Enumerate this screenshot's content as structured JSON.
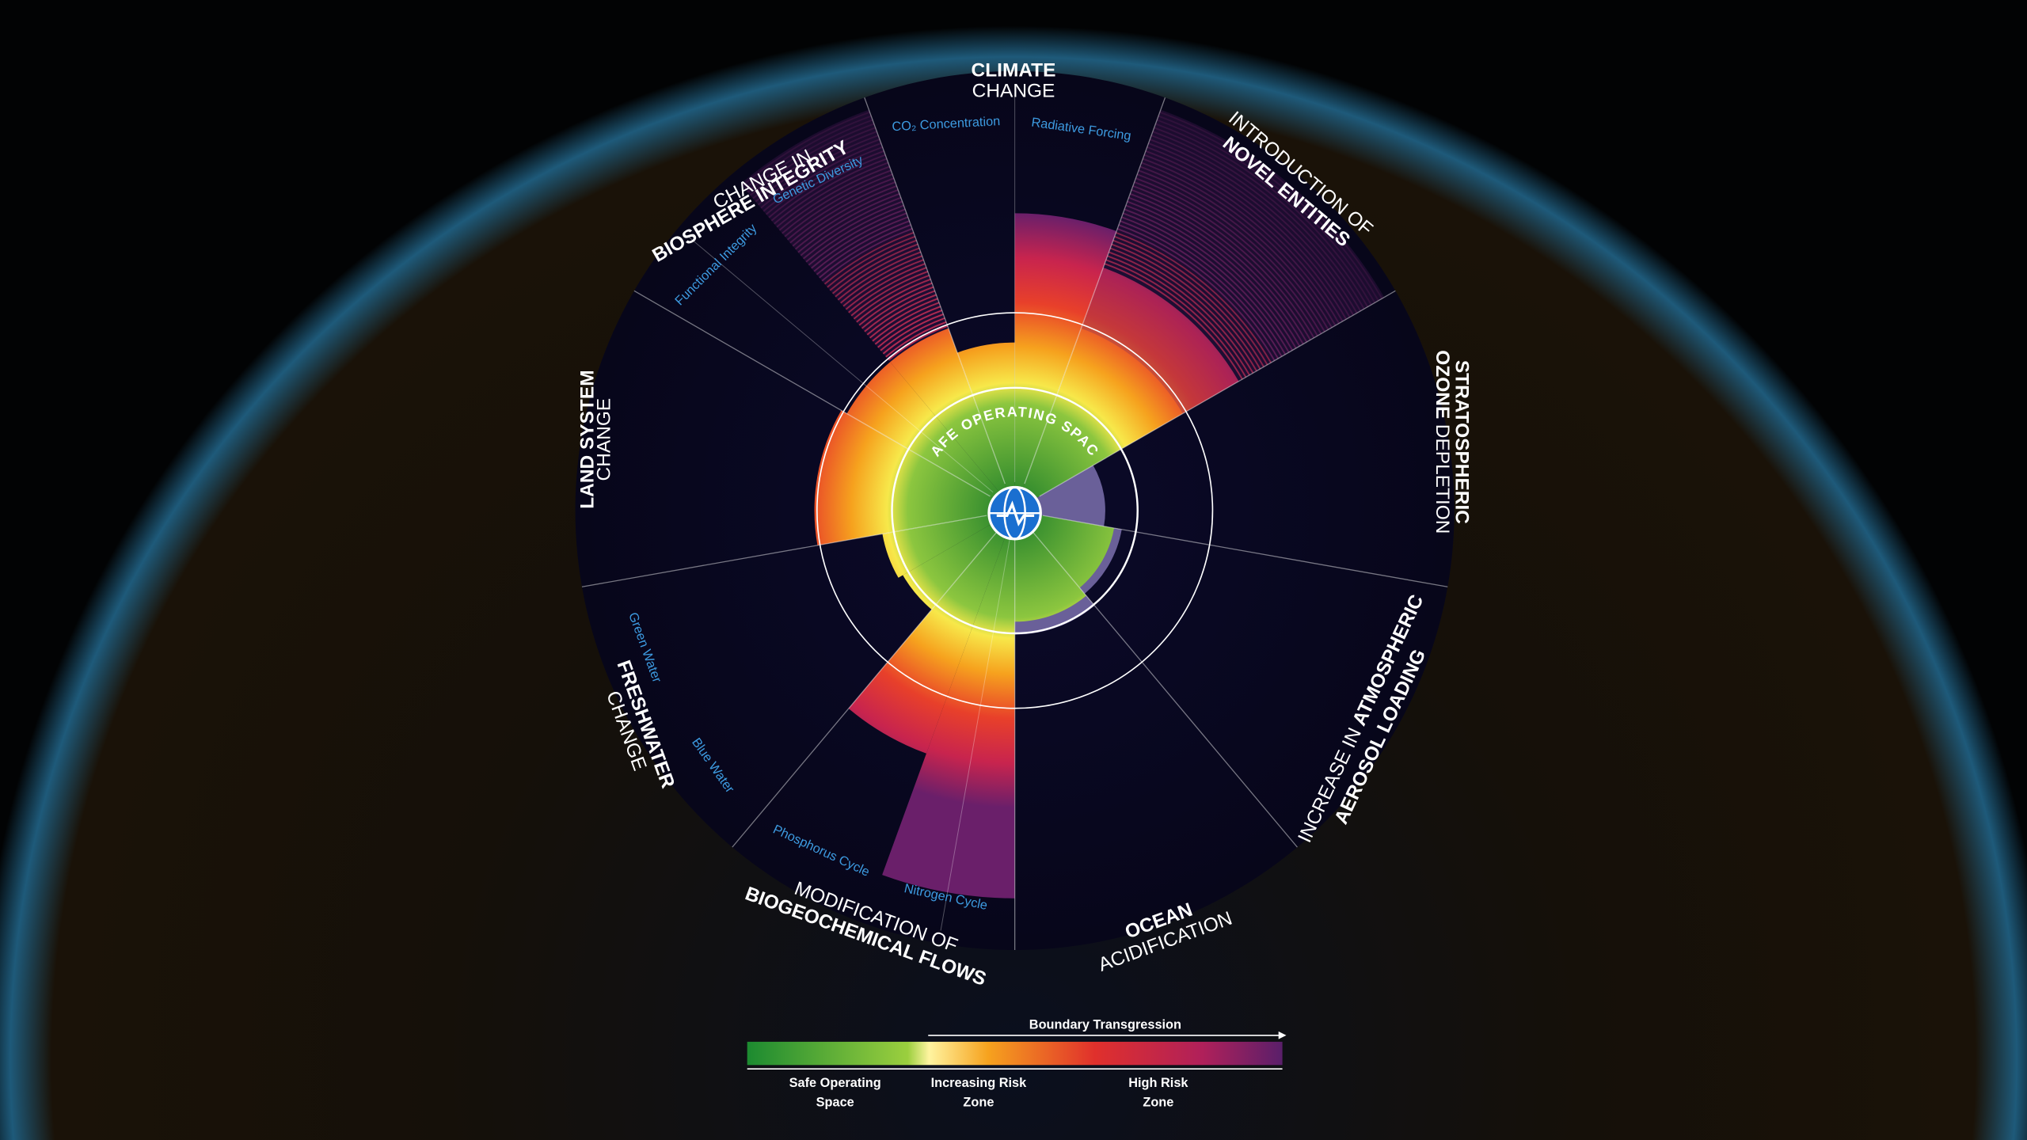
{
  "center_label": "SAFE OPERATING SPACE",
  "climate": {
    "line1": "CLIMATE",
    "line2": "CHANGE",
    "controls": [
      "CO₂ Concentration",
      "Radiative Forcing"
    ]
  },
  "novel_entities": {
    "line1": "INTRODUCTION OF",
    "line2": "NOVEL ENTITIES"
  },
  "ozone": {
    "line1": "STRATOSPHERIC",
    "line2_bold": "OZONE",
    "line2": "DEPLETION"
  },
  "aerosol": {
    "line1": "INCREASE IN",
    "line1_bold": "ATMOSPHERIC",
    "line2": "AEROSOL LOADING"
  },
  "ocean": {
    "line1": "OCEAN",
    "line2": "ACIDIFICATION"
  },
  "biogeochemical": {
    "line1": "MODIFICATION OF",
    "line2": "BIOGEOCHEMICAL FLOWS",
    "controls": [
      "Phosphorus Cycle",
      "Nitrogen Cycle"
    ]
  },
  "freshwater": {
    "line1": "FRESHWATER",
    "line2": "CHANGE",
    "controls": [
      "Green Water",
      "Blue Water"
    ]
  },
  "land": {
    "line1": "LAND SYSTEM",
    "line2": "CHANGE"
  },
  "biosphere": {
    "line1": "CHANGE IN",
    "line2": "BIOSPHERE INTEGRITY",
    "controls": [
      "Genetic Diversity",
      "Functional Integrity"
    ]
  },
  "legend": {
    "arrow": "Boundary Transgression",
    "zones": [
      {
        "line1": "Safe Operating",
        "line2": "Space"
      },
      {
        "line1": "Increasing Risk",
        "line2": "Zone"
      },
      {
        "line1": "High Risk",
        "line2": "Zone"
      }
    ]
  }
}
